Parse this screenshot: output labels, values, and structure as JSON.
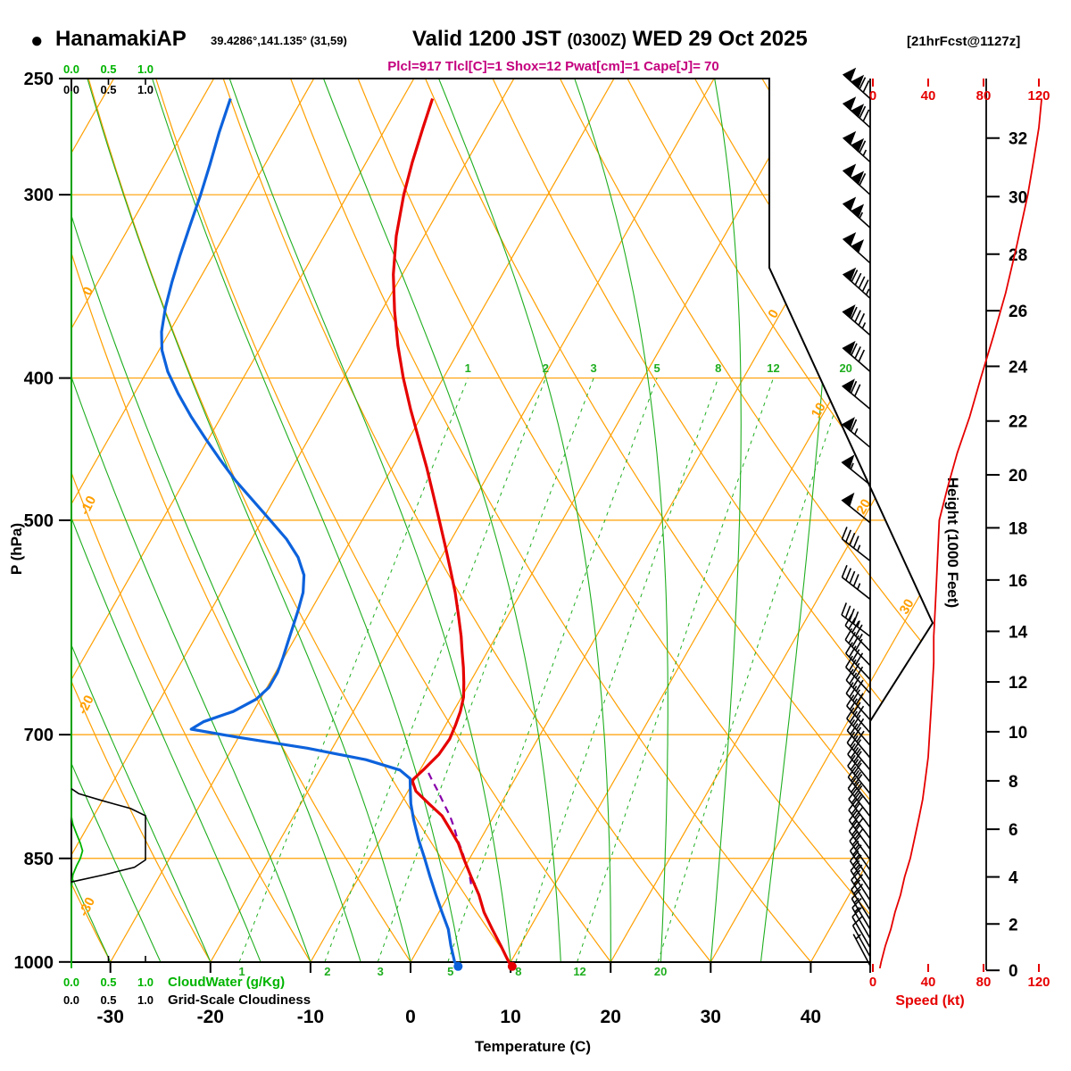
{
  "header": {
    "bullet": "●",
    "station": "HanamakiAP",
    "coords": "39.4286°,141.135° (31,59)",
    "valid_a": "Valid 1200 JST",
    "valid_b": "(0300Z)",
    "valid_c": "WED 29 Oct 2025",
    "fcst": "[21hrFcst@1127z]",
    "params": "Plcl=917 Tlcl[C]=1 Shox=12 Pwat[cm]=1 Cape[J]= 70"
  },
  "axes": {
    "pressure_label": "P (hPa)",
    "pressure_ticks": [
      250,
      300,
      400,
      500,
      700,
      850,
      1000
    ],
    "temp_label": "Temperature (C)",
    "temp_ticks": [
      -30,
      -20,
      -10,
      0,
      10,
      20,
      30,
      40
    ],
    "height_label": "Height (1000 Feet)",
    "height_ticks_kft": [
      0,
      2,
      4,
      6,
      8,
      10,
      12,
      14,
      16,
      18,
      20,
      22,
      24,
      26,
      28,
      30,
      32
    ],
    "speed_label": "Speed (kt)",
    "speed_ticks": [
      0,
      40,
      80,
      120
    ],
    "dry_adiabat_labels": [
      10,
      0,
      -10,
      -20,
      -30
    ],
    "isotherm_right_labels": [
      0,
      10,
      20,
      30
    ],
    "cloud_scale_ticks": [
      "0.0",
      "0.5",
      "1.0"
    ],
    "cloudwater_label": "CloudWater (g/Kg)",
    "cloudiness_label": "Grid-Scale Cloudiness"
  },
  "colors": {
    "grid_orange": "#ff9f00",
    "grid_green": "#1fae1f",
    "bright_green": "#00b400",
    "temp_red": "#e60000",
    "dew_blue": "#0d62dc",
    "parcel_purple": "#8800aa",
    "speed_red": "#e60000",
    "params_magenta": "#c4007e",
    "black": "#000000"
  },
  "chart_data": {
    "type": "skewt_log_p_sounding",
    "pressure_range_hpa": [
      250,
      1000
    ],
    "temp_axis_c": [
      -30,
      40
    ],
    "grid": {
      "isobars_hpa": [
        300,
        400,
        500,
        700,
        850
      ],
      "isotherms_c": {
        "min": -90,
        "max": 40,
        "step": 10
      },
      "dry_adiabats_c": {
        "min": -30,
        "max": 130,
        "step": 10
      },
      "moist_adiabats_c": {
        "min": -30,
        "max": 35,
        "step": 5
      },
      "mixing_ratio_gkg": [
        1,
        2,
        3,
        5,
        8,
        12,
        20
      ]
    },
    "temperature_c": [
      [
        1007,
        10.4
      ],
      [
        1000,
        9.8
      ],
      [
        975,
        8.1
      ],
      [
        950,
        6.3
      ],
      [
        925,
        4.5
      ],
      [
        900,
        3.0
      ],
      [
        875,
        1.2
      ],
      [
        850,
        -0.6
      ],
      [
        830,
        -2.0
      ],
      [
        810,
        -3.8
      ],
      [
        795,
        -5.2
      ],
      [
        780,
        -7.2
      ],
      [
        765,
        -9.2
      ],
      [
        752,
        -10.2
      ],
      [
        738,
        -9.6
      ],
      [
        722,
        -9.0
      ],
      [
        705,
        -8.8
      ],
      [
        690,
        -9.0
      ],
      [
        675,
        -9.3
      ],
      [
        660,
        -9.8
      ],
      [
        645,
        -10.6
      ],
      [
        630,
        -11.5
      ],
      [
        615,
        -12.5
      ],
      [
        600,
        -13.5
      ],
      [
        580,
        -15.0
      ],
      [
        560,
        -16.6
      ],
      [
        540,
        -18.4
      ],
      [
        520,
        -20.3
      ],
      [
        500,
        -22.3
      ],
      [
        480,
        -24.4
      ],
      [
        460,
        -26.6
      ],
      [
        440,
        -29.0
      ],
      [
        420,
        -31.5
      ],
      [
        400,
        -34.0
      ],
      [
        380,
        -36.4
      ],
      [
        360,
        -38.7
      ],
      [
        340,
        -40.9
      ],
      [
        320,
        -42.8
      ],
      [
        300,
        -44.4
      ],
      [
        285,
        -45.4
      ],
      [
        270,
        -46.3
      ],
      [
        258,
        -47.0
      ]
    ],
    "dewpoint_c": [
      [
        1007,
        5.0
      ],
      [
        1000,
        4.4
      ],
      [
        975,
        3.1
      ],
      [
        950,
        1.9
      ],
      [
        925,
        0.3
      ],
      [
        900,
        -1.3
      ],
      [
        875,
        -2.9
      ],
      [
        850,
        -4.5
      ],
      [
        825,
        -6.2
      ],
      [
        800,
        -7.8
      ],
      [
        780,
        -9.0
      ],
      [
        762,
        -9.9
      ],
      [
        750,
        -10.5
      ],
      [
        740,
        -12.0
      ],
      [
        728,
        -16.0
      ],
      [
        715,
        -22.5
      ],
      [
        703,
        -30.0
      ],
      [
        694,
        -35.2
      ],
      [
        686,
        -34.4
      ],
      [
        675,
        -32.0
      ],
      [
        662,
        -30.4
      ],
      [
        650,
        -29.8
      ],
      [
        635,
        -29.8
      ],
      [
        620,
        -30.1
      ],
      [
        605,
        -30.5
      ],
      [
        590,
        -30.9
      ],
      [
        575,
        -31.3
      ],
      [
        560,
        -31.8
      ],
      [
        545,
        -32.7
      ],
      [
        530,
        -34.3
      ],
      [
        515,
        -36.5
      ],
      [
        500,
        -39.2
      ],
      [
        485,
        -42.0
      ],
      [
        470,
        -44.9
      ],
      [
        455,
        -47.6
      ],
      [
        440,
        -50.3
      ],
      [
        425,
        -53.0
      ],
      [
        410,
        -55.6
      ],
      [
        396,
        -57.9
      ],
      [
        383,
        -59.7
      ],
      [
        372,
        -60.8
      ],
      [
        358,
        -61.8
      ],
      [
        344,
        -62.6
      ],
      [
        330,
        -63.3
      ],
      [
        315,
        -64.0
      ],
      [
        300,
        -64.7
      ],
      [
        286,
        -65.5
      ],
      [
        272,
        -66.4
      ],
      [
        258,
        -67.2
      ]
    ],
    "parcel_c": [
      [
        885,
        1.6
      ],
      [
        870,
        0.8
      ],
      [
        855,
        -0.2
      ],
      [
        840,
        -1.2
      ],
      [
        825,
        -2.3
      ],
      [
        810,
        -3.3
      ],
      [
        795,
        -4.4
      ],
      [
        780,
        -5.7
      ],
      [
        765,
        -7.0
      ],
      [
        752,
        -8.2
      ],
      [
        742,
        -9.1
      ]
    ],
    "wind_barbs_p_spd_dir": [
      [
        258,
        122,
        312
      ],
      [
        270,
        118,
        312
      ],
      [
        285,
        114,
        312
      ],
      [
        300,
        112,
        312
      ],
      [
        316,
        106,
        312
      ],
      [
        334,
        99,
        312
      ],
      [
        353,
        93,
        312
      ],
      [
        374,
        86,
        311
      ],
      [
        396,
        79,
        311
      ],
      [
        420,
        72,
        310
      ],
      [
        446,
        63,
        310
      ],
      [
        473,
        56,
        309
      ],
      [
        502,
        48,
        309
      ],
      [
        533,
        46,
        308
      ],
      [
        566,
        45,
        308
      ],
      [
        600,
        44,
        307
      ],
      [
        614,
        43,
        316
      ],
      [
        628,
        42,
        316
      ],
      [
        642,
        42,
        317
      ],
      [
        656,
        41,
        317
      ],
      [
        670,
        40,
        318
      ],
      [
        684,
        39,
        318
      ],
      [
        698,
        40,
        319
      ],
      [
        712,
        39,
        319
      ],
      [
        726,
        38,
        320
      ],
      [
        740,
        37,
        320
      ],
      [
        754,
        36,
        321
      ],
      [
        768,
        35,
        321
      ],
      [
        782,
        34,
        322
      ],
      [
        796,
        33,
        322
      ],
      [
        810,
        32,
        323
      ],
      [
        824,
        31,
        323
      ],
      [
        838,
        30,
        324
      ],
      [
        852,
        28,
        324
      ],
      [
        866,
        27,
        325
      ],
      [
        880,
        26,
        326
      ],
      [
        894,
        24,
        326
      ],
      [
        908,
        22,
        327
      ],
      [
        922,
        20,
        328
      ],
      [
        936,
        18,
        328
      ],
      [
        950,
        16,
        329
      ],
      [
        964,
        14,
        330
      ],
      [
        978,
        12,
        330
      ],
      [
        992,
        9,
        331
      ],
      [
        1006,
        7,
        332
      ]
    ],
    "wind_speed_profile_kt": [
      [
        1010,
        5
      ],
      [
        1000,
        6
      ],
      [
        975,
        9
      ],
      [
        950,
        13
      ],
      [
        925,
        16
      ],
      [
        900,
        20
      ],
      [
        875,
        23
      ],
      [
        850,
        27
      ],
      [
        825,
        30
      ],
      [
        800,
        33
      ],
      [
        775,
        36
      ],
      [
        750,
        38
      ],
      [
        725,
        40
      ],
      [
        700,
        41
      ],
      [
        675,
        42
      ],
      [
        650,
        43
      ],
      [
        625,
        44
      ],
      [
        600,
        44
      ],
      [
        575,
        45
      ],
      [
        550,
        46
      ],
      [
        525,
        47
      ],
      [
        500,
        48
      ],
      [
        475,
        54
      ],
      [
        450,
        61
      ],
      [
        425,
        70
      ],
      [
        400,
        78
      ],
      [
        375,
        87
      ],
      [
        350,
        96
      ],
      [
        325,
        104
      ],
      [
        300,
        112
      ],
      [
        285,
        116
      ],
      [
        270,
        120
      ],
      [
        258,
        122
      ]
    ],
    "cloud_water_gkg": [
      [
        1010,
        0
      ],
      [
        890,
        0
      ],
      [
        872,
        0.02
      ],
      [
        860,
        0.07
      ],
      [
        850,
        0.12
      ],
      [
        840,
        0.15
      ],
      [
        830,
        0.12
      ],
      [
        818,
        0.07
      ],
      [
        806,
        0.02
      ],
      [
        796,
        0
      ],
      [
        255,
        0
      ]
    ],
    "grid_scale_cloudiness": [
      [
        882,
        0
      ],
      [
        872,
        0.45
      ],
      [
        862,
        0.85
      ],
      [
        852,
        1.0
      ],
      [
        795,
        1.0
      ],
      [
        786,
        0.8
      ],
      [
        776,
        0.4
      ],
      [
        768,
        0.1
      ],
      [
        762,
        0
      ]
    ]
  }
}
